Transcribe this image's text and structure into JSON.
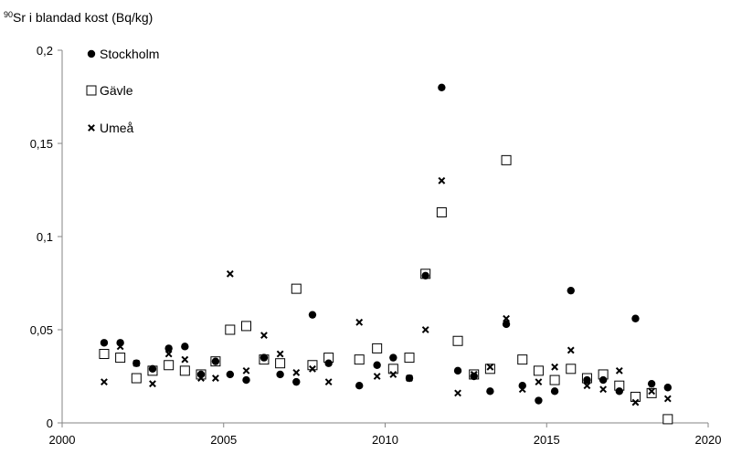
{
  "chart_data": {
    "type": "scatter",
    "title": "",
    "ylabel_sup": "90",
    "ylabel": "Sr i blandad kost (Bq/kg)",
    "xlabel": "",
    "xlim": [
      2000,
      2020
    ],
    "ylim": [
      0,
      0.2
    ],
    "x_ticks": [
      2000,
      2005,
      2010,
      2015,
      2020
    ],
    "x_tick_labels": [
      "2000",
      "2005",
      "2010",
      "2015",
      "2020"
    ],
    "y_ticks": [
      0,
      0.05,
      0.1,
      0.15,
      0.2
    ],
    "y_tick_labels": [
      "0",
      "0,05",
      "0,1",
      "0,15",
      "0,2"
    ],
    "grid": false,
    "legend_position": "top-left",
    "series": [
      {
        "name": "Stockholm",
        "marker": "filled-circle",
        "x": [
          2001.3,
          2001.8,
          2002.3,
          2002.8,
          2003.3,
          2003.8,
          2004.3,
          2004.75,
          2005.2,
          2005.7,
          2006.25,
          2006.75,
          2007.25,
          2007.75,
          2008.25,
          2009.2,
          2009.75,
          2010.25,
          2010.75,
          2011.25,
          2011.75,
          2012.25,
          2012.75,
          2013.25,
          2013.75,
          2014.25,
          2014.75,
          2015.25,
          2015.75,
          2016.25,
          2016.75,
          2017.25,
          2017.75,
          2018.25,
          2018.75
        ],
        "y": [
          0.043,
          0.043,
          0.032,
          0.029,
          0.04,
          0.041,
          0.026,
          0.033,
          0.026,
          0.023,
          0.035,
          0.026,
          0.022,
          0.058,
          0.032,
          0.02,
          0.031,
          0.035,
          0.024,
          0.079,
          0.18,
          0.028,
          0.025,
          0.017,
          0.053,
          0.02,
          0.012,
          0.017,
          0.071,
          0.023,
          0.023,
          0.017,
          0.056,
          0.021,
          0.019
        ]
      },
      {
        "name": "Gävle",
        "marker": "open-square",
        "x": [
          2001.3,
          2001.8,
          2002.3,
          2002.8,
          2003.3,
          2003.8,
          2004.3,
          2004.75,
          2005.2,
          2005.7,
          2006.25,
          2006.75,
          2007.25,
          2007.75,
          2008.25,
          2009.2,
          2009.75,
          2010.25,
          2010.75,
          2011.25,
          2011.75,
          2012.25,
          2012.75,
          2013.25,
          2013.75,
          2014.25,
          2014.75,
          2015.25,
          2015.75,
          2016.25,
          2016.75,
          2017.25,
          2017.75,
          2018.25,
          2018.75
        ],
        "y": [
          0.037,
          0.035,
          0.024,
          0.028,
          0.031,
          0.028,
          0.026,
          0.033,
          0.05,
          0.052,
          0.034,
          0.032,
          0.072,
          0.031,
          0.035,
          0.034,
          0.04,
          0.029,
          0.035,
          0.08,
          0.113,
          0.044,
          0.026,
          0.029,
          0.141,
          0.034,
          0.028,
          0.023,
          0.029,
          0.024,
          0.026,
          0.02,
          0.014,
          0.016,
          0.002
        ]
      },
      {
        "name": "Umeå",
        "marker": "cross",
        "x": [
          2001.3,
          2001.8,
          2002.3,
          2002.8,
          2003.3,
          2003.8,
          2004.3,
          2004.75,
          2005.2,
          2005.7,
          2006.25,
          2006.75,
          2007.25,
          2007.75,
          2008.25,
          2009.2,
          2009.75,
          2010.25,
          2010.75,
          2011.25,
          2011.75,
          2012.25,
          2012.75,
          2013.25,
          2013.75,
          2014.25,
          2014.75,
          2015.25,
          2015.75,
          2016.25,
          2016.75,
          2017.25,
          2017.75,
          2018.25,
          2018.75
        ],
        "y": [
          0.022,
          0.041,
          0.032,
          0.021,
          0.037,
          0.034,
          0.024,
          0.024,
          0.08,
          0.028,
          0.047,
          0.037,
          0.027,
          0.029,
          0.022,
          0.054,
          0.025,
          0.026,
          0.024,
          0.05,
          0.13,
          0.016,
          0.026,
          0.03,
          0.056,
          0.018,
          0.022,
          0.03,
          0.039,
          0.02,
          0.018,
          0.028,
          0.011,
          0.017,
          0.013
        ]
      }
    ]
  }
}
